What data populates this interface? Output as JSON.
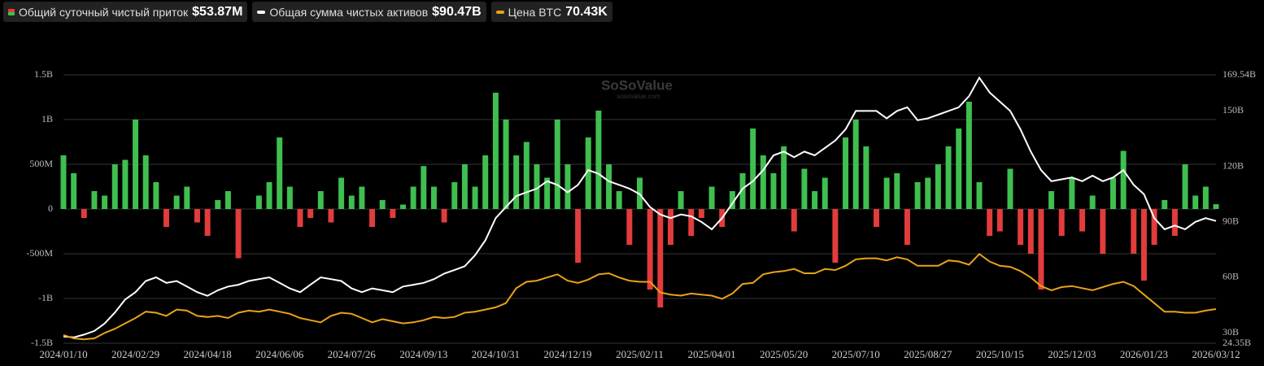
{
  "chart_data": {
    "type": "bar-line",
    "watermark": {
      "name": "SoSoValue",
      "site": "sosovalue.com"
    },
    "categories": [
      "2024/01/10",
      null,
      null,
      null,
      null,
      null,
      null,
      "2024/02/29",
      null,
      null,
      null,
      null,
      null,
      null,
      "2024/04/18",
      null,
      null,
      null,
      null,
      null,
      null,
      "2024/06/06",
      null,
      null,
      null,
      null,
      null,
      null,
      "2024/07/26",
      null,
      null,
      null,
      null,
      null,
      null,
      "2024/09/13",
      null,
      null,
      null,
      null,
      null,
      null,
      "2024/10/31",
      null,
      null,
      null,
      null,
      null,
      null,
      "2024/12/19",
      null,
      null,
      null,
      null,
      null,
      null,
      "2025/02/11",
      null,
      null,
      null,
      null,
      null,
      null,
      "2025/04/01",
      null,
      null,
      null,
      null,
      null,
      null,
      "2025/05/20",
      null,
      null,
      null,
      null,
      null,
      null,
      "2025/07/10",
      null,
      null,
      null,
      null,
      null,
      null,
      "2025/08/27",
      null,
      null,
      null,
      null,
      null,
      null,
      "2025/10/15",
      null,
      null,
      null,
      null,
      null,
      null,
      "2025/12/03",
      null,
      null,
      null,
      null,
      null,
      null,
      "2026/01/23",
      null,
      null,
      null,
      null,
      null,
      null,
      "2026/03/12"
    ],
    "series": [
      {
        "name": "Общий суточный чистый приток",
        "type": "bar",
        "axis": "y",
        "color": "#3fbf50",
        "negative_color": "#e23c3c",
        "current": {
          "value": 53.87,
          "label": "$53.87M"
        },
        "values": [
          600,
          400,
          -100,
          200,
          150,
          500,
          550,
          1000,
          600,
          300,
          -200,
          150,
          250,
          -150,
          -300,
          100,
          200,
          -550,
          0,
          150,
          300,
          800,
          250,
          -200,
          -100,
          200,
          -150,
          350,
          150,
          250,
          -200,
          100,
          -100,
          50,
          250,
          480,
          250,
          -150,
          300,
          500,
          250,
          600,
          1300,
          1000,
          600,
          750,
          500,
          350,
          1000,
          500,
          -600,
          800,
          1100,
          500,
          200,
          -400,
          350,
          -900,
          -1100,
          -400,
          200,
          -300,
          -100,
          250,
          -200,
          200,
          400,
          900,
          600,
          400,
          700,
          -250,
          450,
          200,
          350,
          -600,
          800,
          1000,
          700,
          -200,
          350,
          400,
          -400,
          300,
          350,
          500,
          700,
          900,
          1200,
          300,
          -300,
          -250,
          450,
          -400,
          -500,
          -900,
          200,
          -300,
          350,
          -250,
          150,
          -500,
          350,
          650,
          -500,
          -800,
          -400,
          100,
          -300,
          500,
          150,
          250,
          53.87
        ]
      },
      {
        "name": "Общая сумма чистых активов",
        "type": "line",
        "axis": "y2",
        "color": "#ffffff",
        "current": {
          "value": 90.47,
          "label": "$90.47B"
        },
        "values": [
          28,
          27.5,
          29,
          31,
          35,
          41,
          48,
          52,
          58,
          60,
          57,
          58,
          55,
          52,
          50,
          53,
          55,
          56,
          58,
          59,
          60,
          57,
          54,
          52,
          56,
          60,
          59,
          58,
          54,
          52,
          54,
          53,
          52,
          55,
          56,
          57,
          59,
          62,
          64,
          66,
          72,
          80,
          92,
          98,
          104,
          106,
          108,
          112,
          110,
          106,
          110,
          118,
          116,
          112,
          110,
          108,
          105,
          98,
          94,
          92,
          94,
          93,
          90,
          86,
          92,
          100,
          108,
          112,
          118,
          126,
          128,
          125,
          128,
          126,
          130,
          134,
          140,
          150,
          150,
          150,
          146,
          150,
          152,
          145,
          146,
          148,
          150,
          152,
          158,
          168,
          160,
          155,
          150,
          140,
          128,
          118,
          112,
          113,
          114,
          112,
          115,
          112,
          114,
          118,
          110,
          105,
          92,
          86,
          88,
          86,
          90,
          92,
          90.47
        ]
      },
      {
        "name": "Цена BTC",
        "type": "line",
        "axis": "y3",
        "color": "#e8a317",
        "current": {
          "value": 70.43,
          "label": "70.43K"
        },
        "values": [
          46,
          43,
          42,
          43,
          48,
          52,
          57,
          62,
          68,
          67,
          64,
          70,
          69,
          64,
          63,
          64,
          62,
          67,
          69,
          68,
          70,
          68,
          66,
          62,
          60,
          58,
          64,
          67,
          66,
          62,
          58,
          61,
          59,
          57,
          58,
          60,
          63,
          62,
          63,
          67,
          68,
          70,
          72,
          76,
          90,
          96,
          97,
          100,
          103,
          97,
          95,
          98,
          103,
          104,
          100,
          97,
          96,
          96,
          86,
          84,
          83,
          85,
          84,
          83,
          80,
          85,
          94,
          95,
          103,
          105,
          106,
          108,
          104,
          104,
          108,
          107,
          111,
          117,
          118,
          118,
          116,
          119,
          117,
          111,
          111,
          111,
          116,
          115,
          112,
          122,
          115,
          111,
          110,
          106,
          100,
          92,
          88,
          91,
          92,
          90,
          88,
          91,
          94,
          96,
          92,
          84,
          76,
          68,
          68,
          67,
          67,
          69,
          70.43
        ]
      }
    ],
    "ylim": [
      -1500,
      1500
    ],
    "yticks": [
      {
        "value": -1500,
        "label": "-1.5B"
      },
      {
        "value": -1000,
        "label": "-1B"
      },
      {
        "value": -500,
        "label": "-500M"
      },
      0,
      {
        "value": 500,
        "label": "500M"
      },
      {
        "value": 1000,
        "label": "1B"
      },
      {
        "value": 1500,
        "label": "1.5B"
      }
    ],
    "y2lim": [
      24.35,
      169.54
    ],
    "y2ticks": [
      {
        "value": 24.35,
        "label": "24.35B"
      },
      {
        "value": 30,
        "label": "30B"
      },
      {
        "value": 60,
        "label": "60B"
      },
      {
        "value": 90,
        "label": "90B"
      },
      {
        "value": 120,
        "label": "120B"
      },
      {
        "value": 150,
        "label": "150B"
      },
      {
        "value": 169.54,
        "label": "169.54B"
      }
    ],
    "y3lim": [
      38.4,
      290
    ],
    "grid": true
  }
}
